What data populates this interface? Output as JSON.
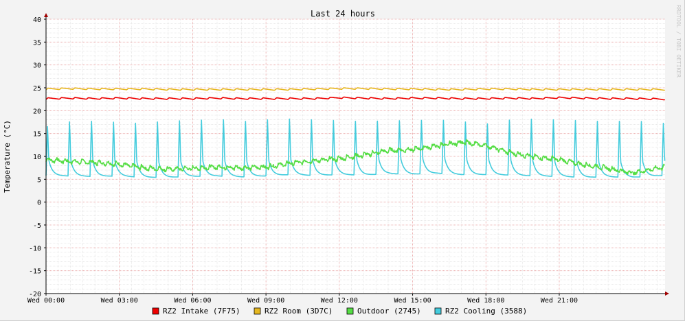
{
  "chart_data": {
    "type": "line",
    "title": "Last 24 hours",
    "ylabel": "Temperature (°C)",
    "watermark": "RRDTOOL / TOBI OETIKER",
    "ylim": [
      -20,
      40
    ],
    "yticks": [
      40,
      35,
      30,
      25,
      20,
      15,
      10,
      5,
      0,
      -5,
      -10,
      -15,
      -20
    ],
    "x_range_hours": [
      0,
      25.33
    ],
    "xticks": [
      {
        "hour": 0,
        "label": "Wed 00:00"
      },
      {
        "hour": 3,
        "label": "Wed 03:00"
      },
      {
        "hour": 6,
        "label": "Wed 06:00"
      },
      {
        "hour": 9,
        "label": "Wed 09:00"
      },
      {
        "hour": 12,
        "label": "Wed 12:00"
      },
      {
        "hour": 15,
        "label": "Wed 15:00"
      },
      {
        "hour": 18,
        "label": "Wed 18:00"
      },
      {
        "hour": 21,
        "label": "Wed 21:00"
      }
    ],
    "grid": true,
    "legend_position": "bottom",
    "series": [
      {
        "name": "RZ2 Intake (7F75)",
        "color": "#ee0000",
        "x": [
          0,
          1,
          2,
          3,
          4,
          5,
          6,
          7,
          8,
          9,
          10,
          11,
          12,
          13,
          14,
          15,
          16,
          17,
          18,
          19,
          20,
          21,
          22,
          23,
          24,
          25.3
        ],
        "values": [
          22.6,
          22.7,
          22.6,
          22.7,
          22.6,
          22.6,
          22.6,
          22.7,
          22.6,
          22.6,
          22.6,
          22.6,
          22.8,
          22.7,
          22.6,
          22.7,
          22.7,
          22.6,
          22.6,
          22.7,
          22.6,
          22.8,
          22.7,
          22.6,
          22.6,
          22.5
        ]
      },
      {
        "name": "RZ2 Room (3D7C)",
        "color": "#e6b820",
        "x": [
          0,
          1,
          2,
          3,
          4,
          5,
          6,
          7,
          8,
          9,
          10,
          11,
          12,
          13,
          14,
          15,
          16,
          17,
          18,
          19,
          20,
          21,
          22,
          23,
          24,
          25.3
        ],
        "values": [
          24.7,
          24.8,
          24.7,
          24.7,
          24.7,
          24.6,
          24.6,
          24.6,
          24.6,
          24.6,
          24.6,
          24.7,
          24.8,
          24.8,
          24.7,
          24.7,
          24.6,
          24.6,
          24.7,
          24.7,
          24.6,
          24.6,
          24.6,
          24.6,
          24.6,
          24.6
        ]
      },
      {
        "name": "Outdoor (2745)",
        "color": "#55dd44",
        "x": [
          0,
          1,
          2,
          3,
          4,
          5,
          6,
          7,
          8,
          9,
          10,
          11,
          12,
          13,
          14,
          15,
          16,
          17,
          18,
          19,
          20,
          21,
          22,
          23,
          24,
          25.3
        ],
        "values": [
          9.2,
          8.8,
          8.6,
          8.2,
          7.4,
          7.1,
          7.3,
          7.6,
          7.4,
          7.6,
          8.4,
          9.0,
          9.4,
          10.2,
          11.2,
          11.4,
          12.2,
          13.0,
          12.3,
          10.7,
          9.8,
          9.2,
          8.1,
          7.3,
          6.3,
          7.6
        ]
      },
      {
        "name": "RZ2 Cooling (3588)",
        "color": "#44ccdd",
        "x": [
          0,
          1,
          2,
          3,
          4,
          5,
          6,
          7,
          8,
          9,
          10,
          11,
          12,
          13,
          14,
          15,
          16,
          17,
          18,
          19,
          20,
          21,
          22,
          23,
          24,
          25.3
        ],
        "values": [
          5.8,
          5.7,
          5.6,
          5.7,
          5.4,
          5.4,
          5.6,
          5.7,
          5.5,
          5.7,
          6.0,
          5.8,
          6.0,
          5.9,
          6.2,
          6.1,
          6.3,
          6.0,
          6.0,
          5.9,
          5.7,
          5.6,
          5.4,
          5.5,
          5.4,
          5.8
        ],
        "cycle_peak_values": [
          17.0,
          18.2,
          18.3,
          18.0,
          17.8,
          18.4,
          18.4,
          18.8,
          18.2,
          18.6,
          18.8,
          18.6,
          18.4,
          18.2,
          18.4,
          18.4,
          18.6,
          18.2,
          17.6,
          18.6,
          18.8,
          18.6,
          18.4,
          18.2,
          18.4,
          17.8
        ]
      }
    ]
  }
}
